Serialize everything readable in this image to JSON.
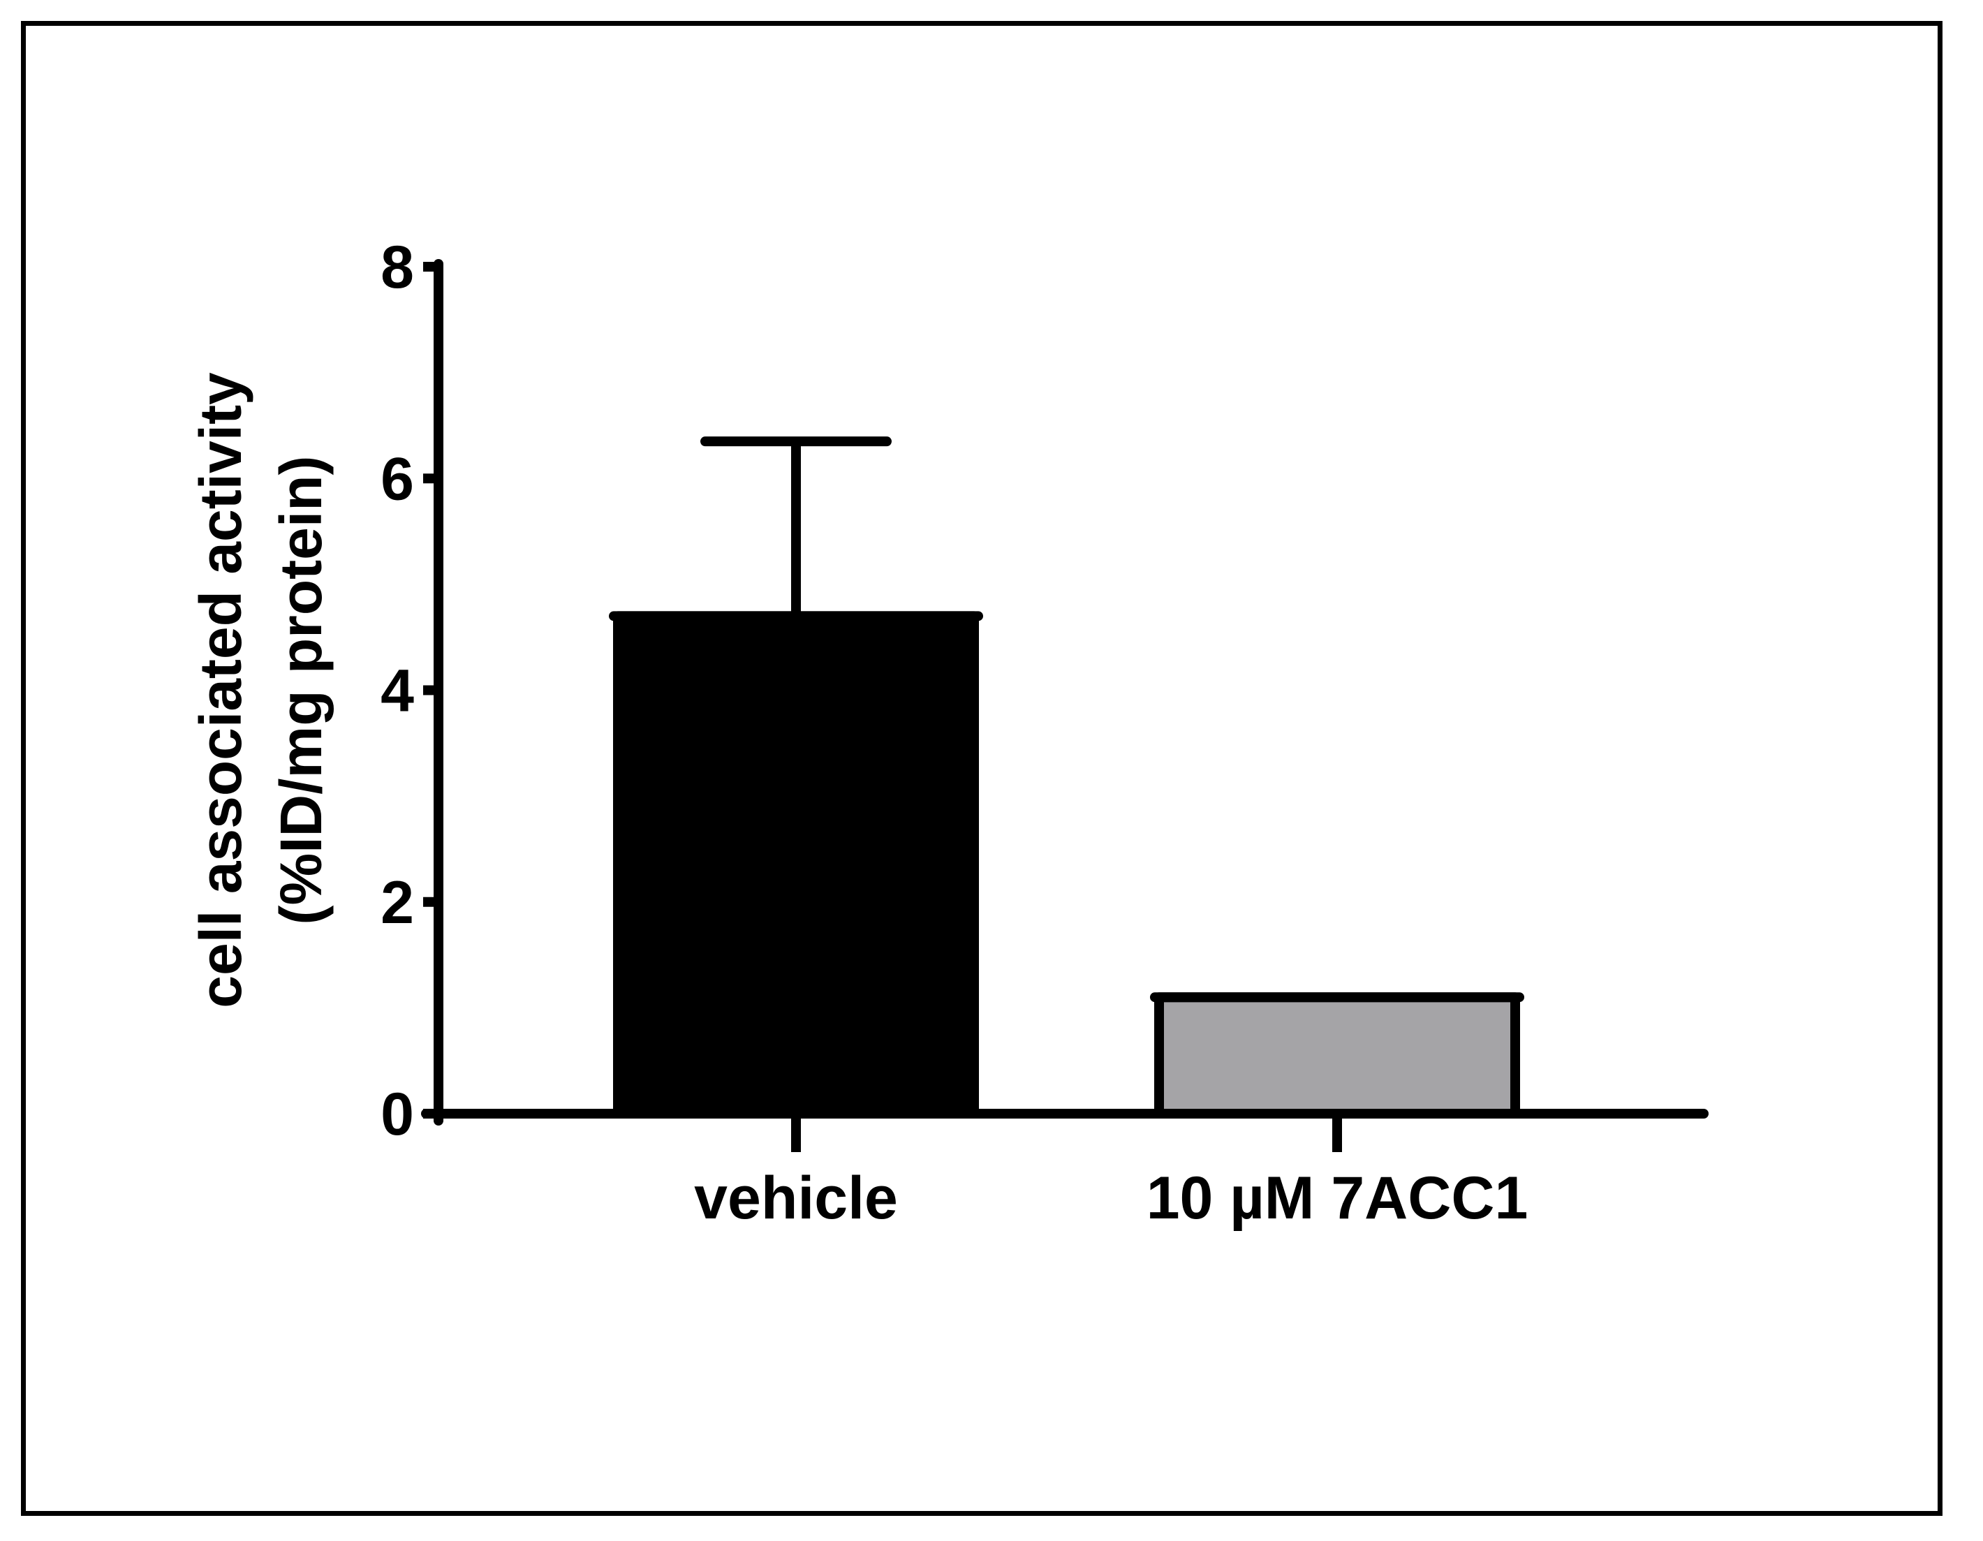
{
  "chart_data": {
    "type": "bar",
    "title": "",
    "categories": [
      "vehicle",
      "10 µM 7ACC1"
    ],
    "values": [
      4.7,
      1.1
    ],
    "error_upper": [
      6.35,
      null
    ],
    "bar_colors": [
      "#000000",
      "#a5a4a7"
    ],
    "ylabel_lines": [
      "cell associated activity",
      "(%ID/mg protein)"
    ],
    "xlabel": "",
    "ylim": [
      0,
      8
    ],
    "yticks": [
      0,
      2,
      4,
      6,
      8
    ],
    "grid": false,
    "legend": null
  }
}
